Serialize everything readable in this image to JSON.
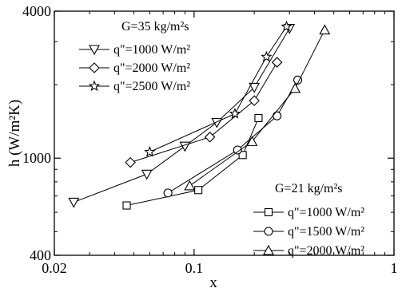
{
  "chart_data": {
    "type": "line",
    "title": "",
    "xlabel": "x",
    "ylabel": "h (W/m²K)",
    "x_scale": "log",
    "y_scale": "log",
    "xlim": [
      0.02,
      1
    ],
    "ylim": [
      400,
      4000
    ],
    "x_ticks": [
      {
        "value": 0.02,
        "label": "0.02"
      },
      {
        "value": 0.1,
        "label": "0.1"
      },
      {
        "value": 1,
        "label": "1"
      }
    ],
    "y_ticks": [
      {
        "value": 400,
        "label": "400"
      },
      {
        "value": 1000,
        "label": "1000"
      },
      {
        "value": 4000,
        "label": "4000"
      }
    ],
    "grid": false,
    "groups": [
      {
        "title": "G=35 kg/m²s",
        "legend_position": "top-left"
      },
      {
        "title": "G=21 kg/m²s",
        "legend_position": "bottom-right"
      }
    ],
    "series": [
      {
        "name": "q\"=1000 W/m²",
        "group": 0,
        "marker": "triangle-down",
        "x": [
          0.025,
          0.058,
          0.09,
          0.13,
          0.2,
          0.3
        ],
        "y": [
          660,
          860,
          1120,
          1400,
          1950,
          3400
        ]
      },
      {
        "name": "q\"=2000 W/m²",
        "group": 0,
        "marker": "diamond",
        "x": [
          0.048,
          0.12,
          0.2,
          0.26
        ],
        "y": [
          960,
          1220,
          1720,
          2470
        ]
      },
      {
        "name": "q\"=2500 W/m²",
        "group": 0,
        "marker": "star",
        "x": [
          0.06,
          0.16,
          0.23,
          0.29
        ],
        "y": [
          1060,
          1520,
          2600,
          3460
        ]
      },
      {
        "name": "q\"=1000 W/m²",
        "group": 1,
        "marker": "square",
        "x": [
          0.046,
          0.105,
          0.175,
          0.21
        ],
        "y": [
          640,
          740,
          1030,
          1460
        ]
      },
      {
        "name": "q\"=1500 W/m²",
        "group": 1,
        "marker": "circle",
        "x": [
          0.074,
          0.165,
          0.26,
          0.33
        ],
        "y": [
          720,
          1080,
          1490,
          2090
        ]
      },
      {
        "name": "q\"=2000 W/m²",
        "group": 1,
        "marker": "triangle-up",
        "x": [
          0.095,
          0.195,
          0.32,
          0.45
        ],
        "y": [
          770,
          1170,
          1930,
          3350
        ]
      }
    ]
  }
}
